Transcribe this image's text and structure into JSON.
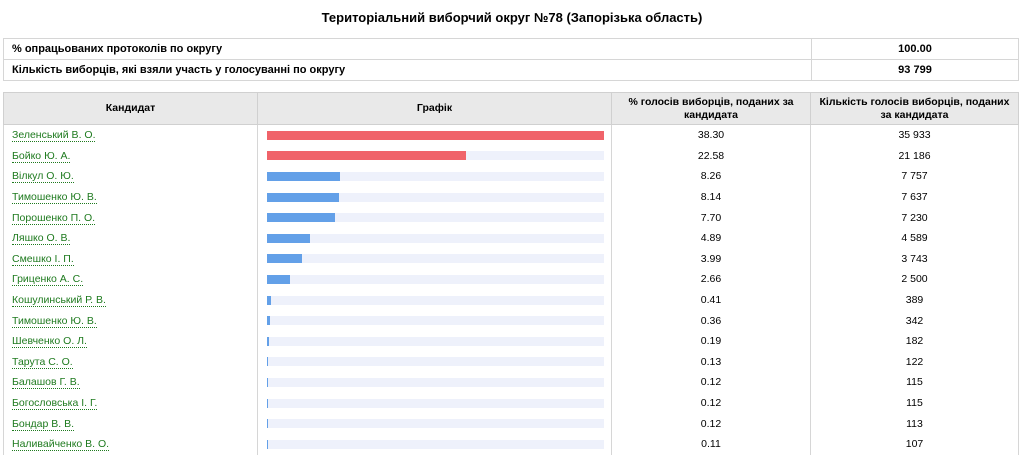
{
  "page_title": "Територіальний виборчий округ №78 (Запорізька область)",
  "summary": [
    {
      "label": "% опрацьованих протоколів по округу",
      "value": "100.00"
    },
    {
      "label": "Кількість виборців, які взяли участь у голосуванні по округу",
      "value": "93 799"
    }
  ],
  "headers": {
    "candidate": "Кандидат",
    "chart": "Графік",
    "percent": "% голосів виборців, поданих за кандидата",
    "votes": "Кількість голосів виборців, поданих за кандидата"
  },
  "colors": {
    "leader": "#f0636a",
    "other": "#63a0e8",
    "track": "#eef1fb",
    "link": "#1e7a1e"
  },
  "candidates": [
    {
      "name": "Зеленський В. О.",
      "percent": "38.30",
      "votes": "35 933",
      "bar_fraction": 1.0,
      "color": "leader"
    },
    {
      "name": "Бойко Ю. А.",
      "percent": "22.58",
      "votes": "21 186",
      "bar_fraction": 0.59,
      "color": "leader"
    },
    {
      "name": "Вілкул О. Ю.",
      "percent": "8.26",
      "votes": "7 757",
      "bar_fraction": 0.216,
      "color": "other"
    },
    {
      "name": "Тимошенко Ю. В.",
      "percent": "8.14",
      "votes": "7 637",
      "bar_fraction": 0.213,
      "color": "other"
    },
    {
      "name": "Порошенко П. О.",
      "percent": "7.70",
      "votes": "7 230",
      "bar_fraction": 0.201,
      "color": "other"
    },
    {
      "name": "Ляшко О. В.",
      "percent": "4.89",
      "votes": "4 589",
      "bar_fraction": 0.128,
      "color": "other"
    },
    {
      "name": "Смешко І. П.",
      "percent": "3.99",
      "votes": "3 743",
      "bar_fraction": 0.104,
      "color": "other"
    },
    {
      "name": "Гриценко А. С.",
      "percent": "2.66",
      "votes": "2 500",
      "bar_fraction": 0.069,
      "color": "other"
    },
    {
      "name": "Кошулинський Р. В.",
      "percent": "0.41",
      "votes": "389",
      "bar_fraction": 0.012,
      "color": "other"
    },
    {
      "name": "Тимошенко Ю. В.",
      "percent": "0.36",
      "votes": "342",
      "bar_fraction": 0.01,
      "color": "other"
    },
    {
      "name": "Шевченко О. Л.",
      "percent": "0.19",
      "votes": "182",
      "bar_fraction": 0.005,
      "color": "other"
    },
    {
      "name": "Тарута С. О.",
      "percent": "0.13",
      "votes": "122",
      "bar_fraction": 0.004,
      "color": "other"
    },
    {
      "name": "Балашов Г. В.",
      "percent": "0.12",
      "votes": "115",
      "bar_fraction": 0.003,
      "color": "other"
    },
    {
      "name": "Богословська І. Г.",
      "percent": "0.12",
      "votes": "115",
      "bar_fraction": 0.003,
      "color": "other"
    },
    {
      "name": "Бондар В. В.",
      "percent": "0.12",
      "votes": "113",
      "bar_fraction": 0.003,
      "color": "other"
    },
    {
      "name": "Наливайченко В. О.",
      "percent": "0.11",
      "votes": "107",
      "bar_fraction": 0.003,
      "color": "other"
    }
  ]
}
